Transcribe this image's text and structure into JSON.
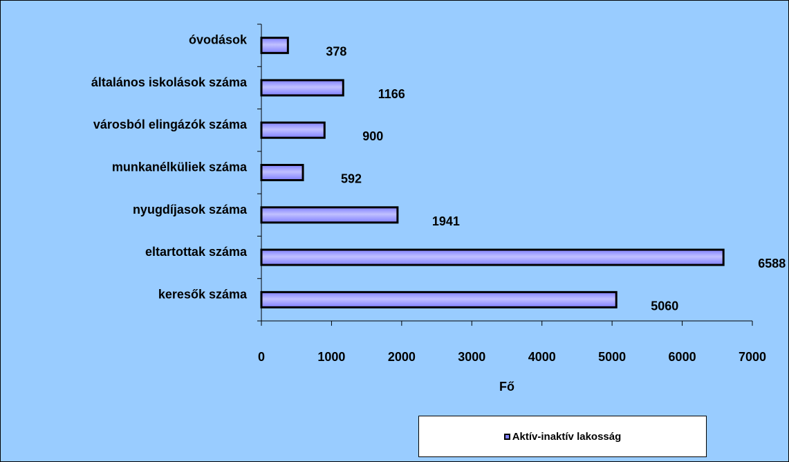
{
  "chart_data": {
    "type": "bar",
    "orientation": "horizontal",
    "categories": [
      "óvodások",
      "általános iskolások száma",
      "városból elingázók száma",
      "munkanélküliek száma",
      "nyugdíjasok száma",
      "eltartottak száma",
      "keresők száma"
    ],
    "series": [
      {
        "name": "Aktív-inaktív lakosság",
        "values": [
          378,
          1166,
          900,
          592,
          1941,
          6588,
          5060
        ]
      }
    ],
    "data_labels": [
      "378",
      "1166",
      "900",
      "592",
      "1941",
      "6588",
      "5060"
    ],
    "xlabel": "Fő",
    "xlim": [
      0,
      7000
    ],
    "xticks": [
      0,
      1000,
      2000,
      3000,
      4000,
      5000,
      6000,
      7000
    ],
    "xtick_labels": [
      "0",
      "1000",
      "2000",
      "3000",
      "4000",
      "5000",
      "6000",
      "7000"
    ],
    "grid": false,
    "legend_position": "bottom-right",
    "colors": {
      "background": "#99ccff",
      "bar_fill": "#8080ff",
      "bar_highlight": "#c0c0ff",
      "bar_stroke": "#000000"
    }
  },
  "legend": {
    "label": "Aktív-inaktív lakosság"
  }
}
